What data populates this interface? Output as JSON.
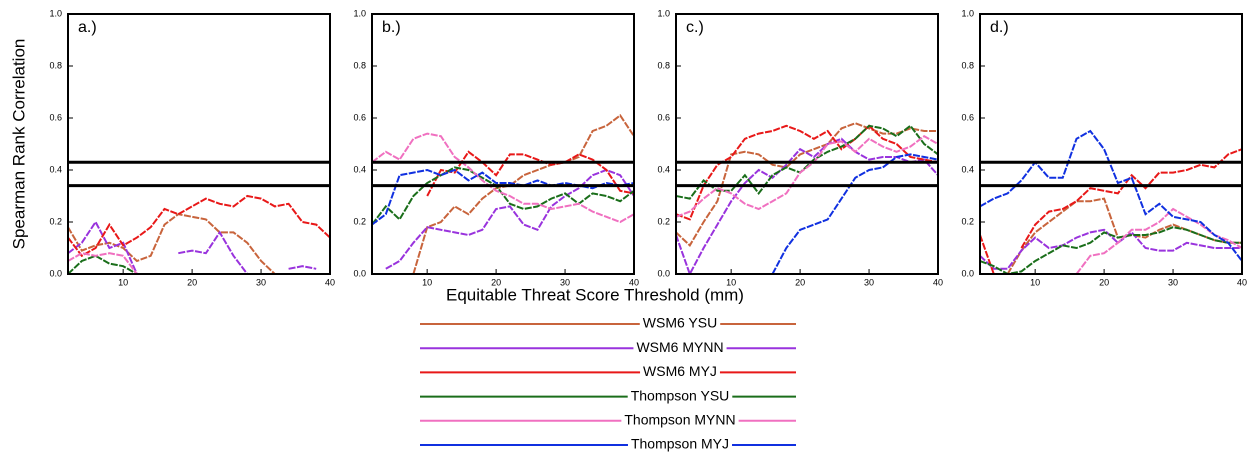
{
  "ylabel": "Spearman Rank Correlation",
  "xlabel": "Equitable Threat Score Threshold (mm)",
  "series_styles": [
    {
      "name": "WSM6 YSU",
      "color": "#c8643c"
    },
    {
      "name": "WSM6 MYNN",
      "color": "#9933dd"
    },
    {
      "name": "WSM6 MYJ",
      "color": "#e81818"
    },
    {
      "name": "Thompson YSU",
      "color": "#1a6e1a"
    },
    {
      "name": "Thompson MYNN",
      "color": "#f070c0"
    },
    {
      "name": "Thompson MYJ",
      "color": "#1030e0"
    }
  ],
  "chart_data": [
    {
      "type": "line",
      "title": "a.)",
      "x": [
        2,
        4,
        6,
        8,
        10,
        12,
        14,
        16,
        18,
        20,
        22,
        24,
        26,
        28,
        30,
        32,
        34,
        36,
        38,
        40
      ],
      "xlim": [
        2,
        40
      ],
      "xticks": [
        10,
        20,
        30,
        40
      ],
      "ylim": [
        0,
        1
      ],
      "yticks": [
        {
          "value": 0,
          "label": "0.0"
        },
        0.2,
        0.4,
        0.6,
        0.8,
        {
          "value": 1,
          "label": "1.0"
        }
      ],
      "hlines": [
        0.43,
        0.34
      ],
      "series": [
        {
          "values": [
            0.18,
            0.09,
            0.11,
            0.12,
            0.1,
            0.05,
            0.07,
            0.19,
            0.23,
            0.22,
            0.21,
            0.16,
            0.16,
            0.12,
            0.05,
            0.0,
            null,
            null,
            null,
            null
          ]
        },
        {
          "values": [
            0.08,
            0.12,
            0.2,
            0.1,
            0.12,
            0.0,
            null,
            null,
            0.08,
            0.09,
            0.08,
            0.16,
            0.07,
            0.0,
            null,
            null,
            0.02,
            0.03,
            0.02,
            null
          ]
        },
        {
          "values": [
            0.14,
            0.07,
            0.1,
            0.19,
            0.11,
            0.14,
            0.18,
            0.25,
            0.23,
            0.26,
            0.29,
            0.27,
            0.26,
            0.3,
            0.29,
            0.26,
            0.27,
            0.2,
            0.19,
            0.14
          ]
        },
        {
          "values": [
            0.0,
            0.05,
            0.07,
            0.04,
            0.03,
            0.0,
            null,
            null,
            null,
            null,
            null,
            null,
            null,
            null,
            null,
            null,
            null,
            null,
            null,
            null
          ]
        },
        {
          "values": [
            0.05,
            0.08,
            0.07,
            0.08,
            0.07,
            0.0,
            null,
            null,
            null,
            null,
            null,
            null,
            null,
            null,
            null,
            null,
            null,
            null,
            null,
            null
          ]
        },
        {
          "values": [
            null,
            null,
            null,
            null,
            null,
            null,
            null,
            null,
            null,
            null,
            null,
            null,
            null,
            null,
            null,
            null,
            null,
            null,
            null,
            null
          ]
        }
      ]
    },
    {
      "type": "line",
      "title": "b.)",
      "x": [
        2,
        4,
        6,
        8,
        10,
        12,
        14,
        16,
        18,
        20,
        22,
        24,
        26,
        28,
        30,
        32,
        34,
        36,
        38,
        40
      ],
      "xlim": [
        2,
        40
      ],
      "xticks": [
        10,
        20,
        30,
        40
      ],
      "ylim": [
        0,
        1
      ],
      "yticks": [
        {
          "value": 0,
          "label": "0.0"
        },
        0.2,
        0.4,
        0.6,
        0.8,
        {
          "value": 1,
          "label": "1.0"
        }
      ],
      "hlines": [
        0.43,
        0.34
      ],
      "series": [
        {
          "values": [
            null,
            null,
            null,
            0.0,
            0.18,
            0.2,
            0.26,
            0.23,
            0.29,
            0.33,
            0.34,
            0.38,
            0.4,
            0.42,
            0.43,
            0.45,
            0.55,
            0.57,
            0.61,
            0.53
          ]
        },
        {
          "values": [
            null,
            0.02,
            0.05,
            0.12,
            0.18,
            0.17,
            0.16,
            0.15,
            0.17,
            0.25,
            0.26,
            0.19,
            0.17,
            0.26,
            0.3,
            0.33,
            0.38,
            0.4,
            0.38,
            0.3
          ]
        },
        {
          "values": [
            null,
            null,
            null,
            null,
            0.3,
            0.4,
            0.39,
            0.47,
            0.43,
            0.38,
            0.46,
            0.46,
            0.44,
            0.42,
            0.43,
            0.46,
            0.44,
            0.4,
            0.32,
            0.31
          ]
        },
        {
          "values": [
            0.19,
            0.26,
            0.21,
            0.3,
            0.35,
            0.38,
            0.41,
            0.4,
            0.37,
            0.34,
            0.27,
            0.25,
            0.26,
            0.29,
            0.31,
            0.27,
            0.31,
            0.3,
            0.28,
            0.32
          ]
        },
        {
          "values": [
            0.43,
            0.47,
            0.44,
            0.52,
            0.54,
            0.53,
            0.45,
            0.41,
            0.36,
            0.32,
            0.3,
            0.27,
            0.27,
            0.25,
            0.26,
            0.27,
            0.24,
            0.22,
            0.2,
            0.23
          ]
        },
        {
          "values": [
            0.19,
            0.23,
            0.38,
            0.39,
            0.4,
            0.38,
            0.4,
            0.36,
            0.39,
            0.35,
            0.35,
            0.34,
            0.36,
            0.34,
            0.35,
            0.34,
            0.33,
            0.35,
            0.34,
            0.35
          ]
        }
      ]
    },
    {
      "type": "line",
      "title": "c.)",
      "x": [
        2,
        4,
        6,
        8,
        10,
        12,
        14,
        16,
        18,
        20,
        22,
        24,
        26,
        28,
        30,
        32,
        34,
        36,
        38,
        40
      ],
      "xlim": [
        2,
        40
      ],
      "xticks": [
        10,
        20,
        30,
        40
      ],
      "ylim": [
        0,
        1
      ],
      "yticks": [
        {
          "value": 0,
          "label": "0.0"
        },
        0.2,
        0.4,
        0.6,
        0.8,
        {
          "value": 1,
          "label": "1.0"
        }
      ],
      "hlines": [
        0.43,
        0.34
      ],
      "series": [
        {
          "values": [
            0.16,
            0.11,
            0.2,
            0.28,
            0.46,
            0.47,
            0.46,
            0.42,
            0.41,
            0.46,
            0.48,
            0.5,
            0.56,
            0.58,
            0.56,
            0.54,
            0.54,
            0.56,
            0.55,
            0.55
          ]
        },
        {
          "values": [
            0.15,
            0.0,
            0.1,
            0.19,
            0.28,
            0.35,
            0.4,
            0.37,
            0.42,
            0.48,
            0.45,
            0.5,
            0.52,
            0.47,
            0.44,
            0.45,
            0.45,
            0.43,
            0.44,
            0.38
          ]
        },
        {
          "values": [
            0.23,
            0.21,
            0.34,
            0.42,
            0.45,
            0.52,
            0.54,
            0.55,
            0.57,
            0.55,
            0.52,
            0.55,
            0.48,
            0.52,
            0.57,
            0.52,
            0.5,
            0.45,
            0.44,
            0.43
          ]
        },
        {
          "values": [
            0.3,
            0.29,
            0.36,
            0.32,
            0.32,
            0.38,
            0.31,
            0.38,
            0.41,
            0.39,
            0.44,
            0.47,
            0.49,
            0.52,
            0.57,
            0.56,
            0.53,
            0.57,
            0.5,
            0.46
          ]
        },
        {
          "values": [
            0.22,
            0.24,
            0.29,
            0.33,
            0.31,
            0.27,
            0.25,
            0.28,
            0.31,
            0.39,
            0.43,
            0.5,
            0.51,
            0.47,
            0.52,
            0.49,
            0.47,
            0.49,
            0.53,
            0.5
          ]
        },
        {
          "values": [
            null,
            null,
            null,
            null,
            null,
            null,
            null,
            0.0,
            0.1,
            0.17,
            0.19,
            0.21,
            0.29,
            0.37,
            0.4,
            0.41,
            0.45,
            0.46,
            0.45,
            0.44
          ]
        }
      ]
    },
    {
      "type": "line",
      "title": "d.)",
      "x": [
        2,
        4,
        6,
        8,
        10,
        12,
        14,
        16,
        18,
        20,
        22,
        24,
        26,
        28,
        30,
        32,
        34,
        36,
        38,
        40
      ],
      "xlim": [
        2,
        40
      ],
      "xticks": [
        10,
        20,
        30,
        40
      ],
      "ylim": [
        0,
        1
      ],
      "yticks": [
        {
          "value": 0,
          "label": "0.0"
        },
        0.2,
        0.4,
        0.6,
        0.8,
        {
          "value": 1,
          "label": "1.0"
        }
      ],
      "hlines": [
        0.43,
        0.34
      ],
      "series": [
        {
          "values": [
            null,
            null,
            0.0,
            0.09,
            0.16,
            0.2,
            0.24,
            0.28,
            0.28,
            0.29,
            0.14,
            0.15,
            0.14,
            0.17,
            0.19,
            0.17,
            0.15,
            0.13,
            0.12,
            0.12
          ]
        },
        {
          "values": [
            0.07,
            0.02,
            0.02,
            0.09,
            0.14,
            0.1,
            0.11,
            0.14,
            0.16,
            0.17,
            0.12,
            0.16,
            0.1,
            0.09,
            0.09,
            0.12,
            0.11,
            0.1,
            0.1,
            0.1
          ]
        },
        {
          "values": [
            0.15,
            0.0,
            null,
            0.1,
            0.19,
            0.24,
            0.25,
            0.28,
            0.33,
            0.32,
            0.31,
            0.38,
            0.33,
            0.39,
            0.39,
            0.4,
            0.42,
            0.41,
            0.46,
            0.48
          ]
        },
        {
          "values": [
            0.05,
            0.03,
            0.0,
            0.01,
            0.05,
            0.08,
            0.11,
            0.1,
            0.12,
            0.16,
            0.14,
            0.15,
            0.15,
            0.16,
            0.18,
            0.17,
            0.15,
            0.13,
            0.12,
            0.12
          ]
        },
        {
          "values": [
            null,
            null,
            null,
            null,
            null,
            null,
            null,
            0.0,
            0.07,
            0.08,
            0.12,
            0.17,
            0.17,
            0.2,
            0.25,
            0.22,
            0.19,
            0.15,
            0.13,
            0.1
          ]
        },
        {
          "values": [
            0.26,
            0.29,
            0.31,
            0.36,
            0.43,
            0.37,
            0.37,
            0.52,
            0.55,
            0.48,
            0.35,
            0.37,
            0.23,
            0.27,
            0.22,
            0.21,
            0.2,
            0.15,
            0.12,
            0.05
          ]
        }
      ]
    }
  ]
}
